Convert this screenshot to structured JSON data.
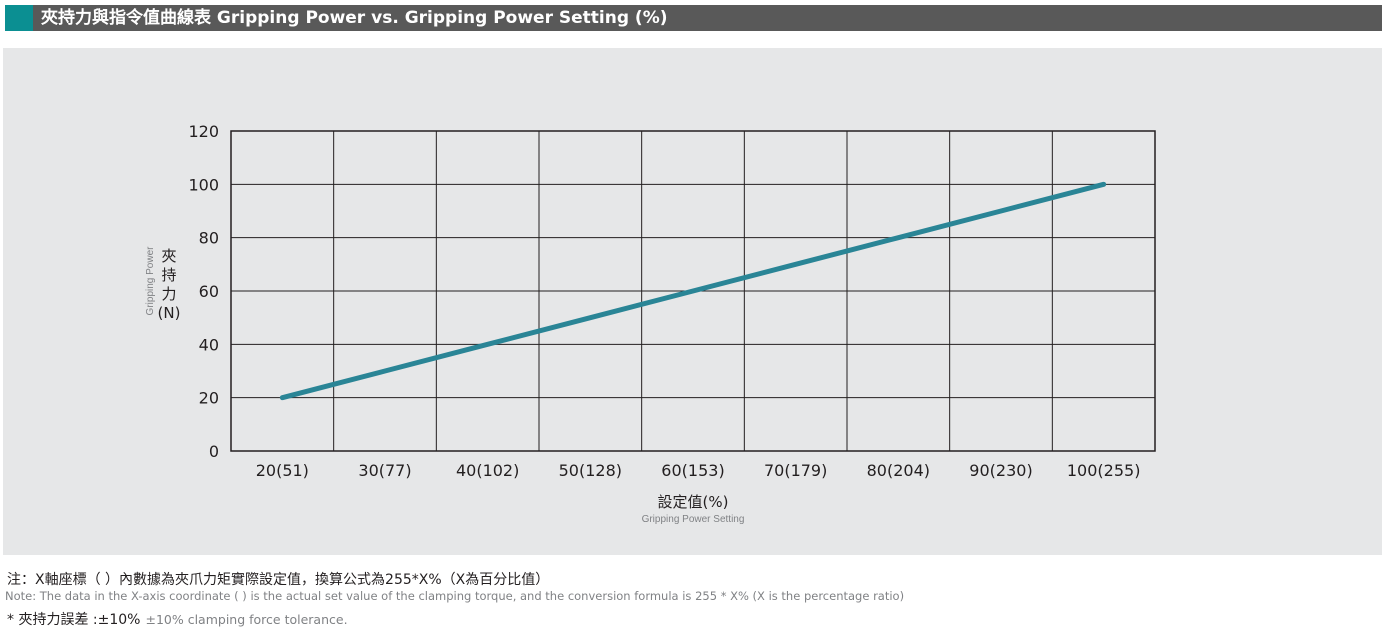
{
  "title": "夾持力與指令值曲線表 Gripping Power vs. Gripping Power Setting (%)",
  "chart_data": {
    "type": "line",
    "categories": [
      "20(51)",
      "30(77)",
      "40(102)",
      "50(128)",
      "60(153)",
      "70(179)",
      "80(204)",
      "90(230)",
      "100(255)"
    ],
    "x": [
      20,
      30,
      40,
      50,
      60,
      70,
      80,
      90,
      100
    ],
    "series": [
      {
        "values": [
          20,
          30,
          40,
          50,
          60,
          70,
          80,
          90,
          100
        ]
      }
    ],
    "ylim": [
      0,
      120
    ],
    "yticks": [
      0,
      20,
      40,
      60,
      80,
      100,
      120
    ],
    "ylabel_zh": [
      "夾",
      "持",
      "力",
      "(N)"
    ],
    "ylabel_en": "Gripping Power",
    "xlabel_zh": "設定值(%)",
    "xlabel_en": "Gripping Power Setting",
    "grid": true,
    "line_color": "#2a8596"
  },
  "notes": {
    "zh": "注：X軸座標（ ）內數據為夾爪力矩實際設定值，換算公式為255*X%（X為百分比值）",
    "en": "Note: The data in the X-axis coordinate ( ) is the actual set value of the clamping torque, and the conversion formula is 255 * X% (X is the percentage ratio)",
    "tolerance_zh": "* 夾持力誤差 :±10%",
    "tolerance_en": "±10% clamping force tolerance."
  }
}
